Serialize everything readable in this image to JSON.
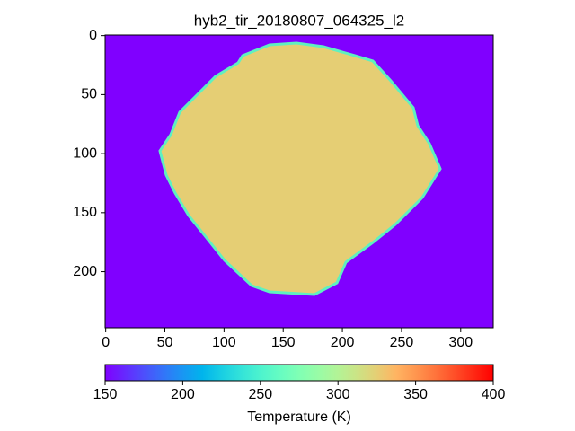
{
  "chart_data": {
    "type": "heatmap",
    "title": "hyb2_tir_20180807_064325_l2",
    "xlim": [
      -0.5,
      327.5
    ],
    "xticks": [
      0,
      50,
      100,
      150,
      200,
      250,
      300
    ],
    "ylim": [
      247.5,
      -0.5
    ],
    "yticks": [
      0,
      50,
      100,
      150,
      200
    ],
    "colormap": "rainbow",
    "background_value": 150,
    "body_value": 325,
    "colorbar": {
      "label": "Temperature (K)",
      "lim": [
        150,
        400
      ],
      "ticks": [
        150,
        200,
        250,
        300,
        350,
        400
      ]
    }
  }
}
